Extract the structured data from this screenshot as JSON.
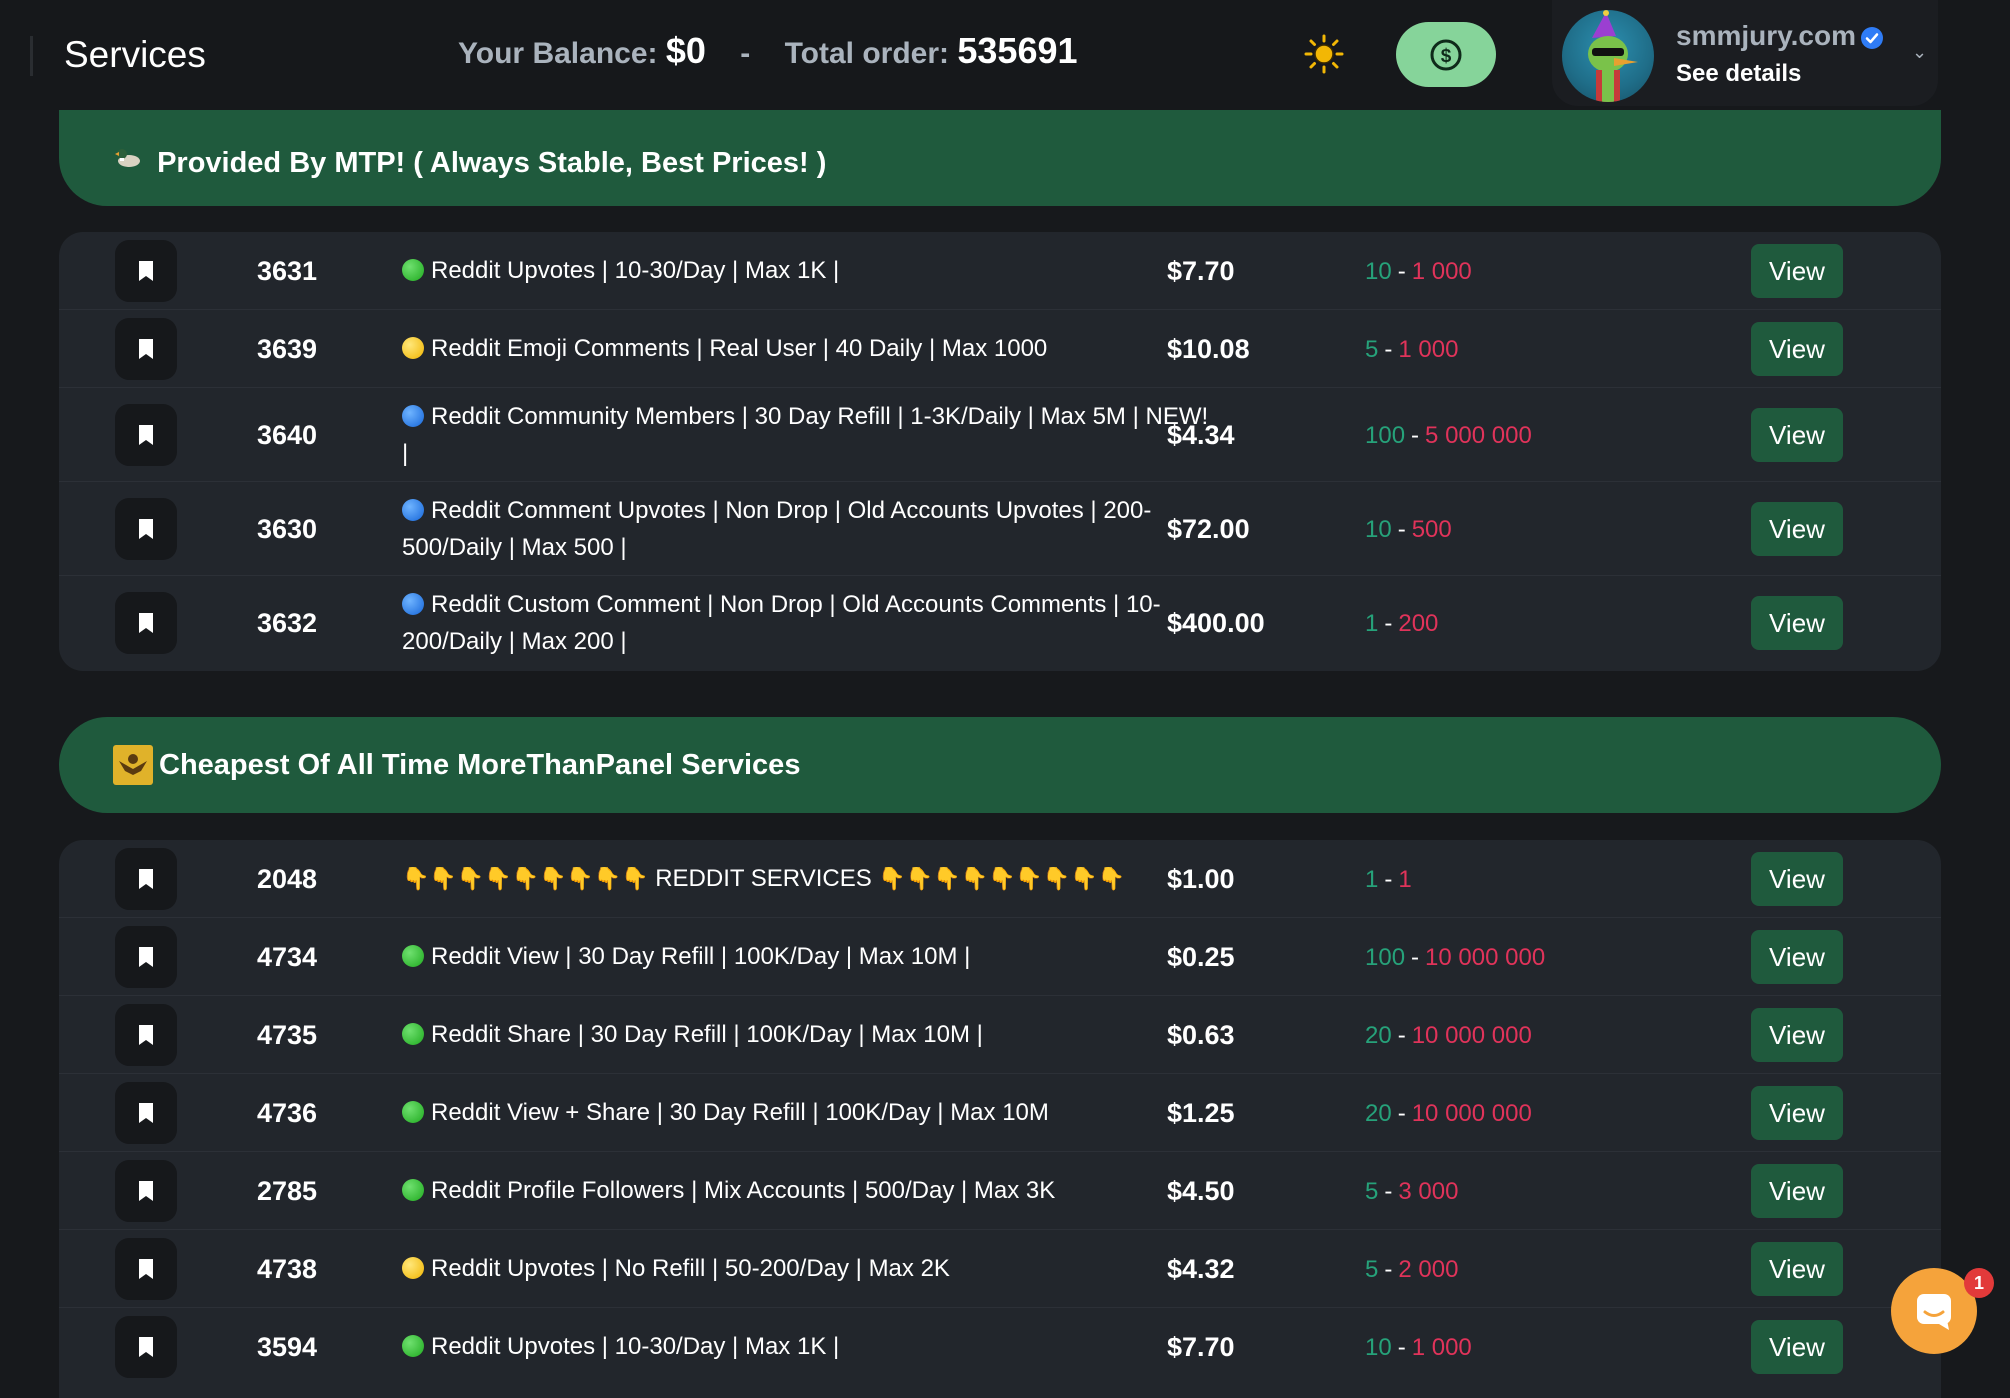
{
  "header": {
    "title": "Services",
    "balance_label": "Your Balance:",
    "balance_value": "$0",
    "separator": "-",
    "total_label": "Total order:",
    "total_value": "535691",
    "theme_icon": "sun-icon",
    "funds_icon": "dollar-circle-icon",
    "profile": {
      "name": "smmjury.com",
      "details": "See details",
      "verified_icon": "verified-badge-icon",
      "chevron": "⌄"
    }
  },
  "categories": [
    {
      "title": "Provided By MTP! ( Always Stable, Best Prices! )",
      "icon": "duck-emoji-icon",
      "services": [
        {
          "id": "3631",
          "dot": "green",
          "name": "Reddit Upvotes | 10-30/Day | Max 1K |",
          "price": "$7.70",
          "min": "10",
          "max": "1 000",
          "action": "View"
        },
        {
          "id": "3639",
          "dot": "yellow",
          "name": "Reddit Emoji Comments | Real User | 40 Daily | Max 1000",
          "price": "$10.08",
          "min": "5",
          "max": "1 000",
          "action": "View"
        },
        {
          "id": "3640",
          "dot": "blue",
          "name": "Reddit Community Members | 30 Day Refill | 1-3K/Daily | Max 5M | NEW! |",
          "price": "$4.34",
          "min": "100",
          "max": "5 000 000",
          "action": "View"
        },
        {
          "id": "3630",
          "dot": "blue",
          "name": "Reddit Comment Upvotes | Non Drop | Old Accounts Upvotes | 200-500/Daily | Max 500 |",
          "price": "$72.00",
          "min": "10",
          "max": "500",
          "action": "View"
        },
        {
          "id": "3632",
          "dot": "blue",
          "name": "Reddit Custom Comment | Non Drop | Old Accounts Comments | 10-200/Daily | Max 200 |",
          "price": "$400.00",
          "min": "1",
          "max": "200",
          "action": "View"
        }
      ]
    },
    {
      "title": "Cheapest Of All Time MoreThanPanel Services",
      "icon": "eagle-emblem-icon",
      "services": [
        {
          "id": "2048",
          "dot": "none",
          "name": "REDDIT SERVICES",
          "fingers": "👇👇👇👇👇👇👇👇👇",
          "price": "$1.00",
          "min": "1",
          "max": "1",
          "action": "View"
        },
        {
          "id": "4734",
          "dot": "green",
          "name": "Reddit View | 30 Day Refill | 100K/Day | Max 10M |",
          "price": "$0.25",
          "min": "100",
          "max": "10 000 000",
          "action": "View"
        },
        {
          "id": "4735",
          "dot": "green",
          "name": "Reddit Share | 30 Day Refill | 100K/Day | Max 10M |",
          "price": "$0.63",
          "min": "20",
          "max": "10 000 000",
          "action": "View"
        },
        {
          "id": "4736",
          "dot": "green",
          "name": "Reddit View + Share | 30 Day Refill | 100K/Day | Max 10M",
          "price": "$1.25",
          "min": "20",
          "max": "10 000 000",
          "action": "View"
        },
        {
          "id": "2785",
          "dot": "green",
          "name": "Reddit Profile Followers | Mix Accounts | 500/Day | Max 3K",
          "price": "$4.50",
          "min": "5",
          "max": "3 000",
          "action": "View"
        },
        {
          "id": "4738",
          "dot": "yellow",
          "name": "Reddit Upvotes | No Refill | 50-200/Day | Max 2K",
          "price": "$4.32",
          "min": "5",
          "max": "2 000",
          "action": "View"
        },
        {
          "id": "3594",
          "dot": "green",
          "name": "Reddit Upvotes | 10-30/Day | Max 1K |",
          "price": "$7.70",
          "min": "10",
          "max": "1 000",
          "action": "View"
        }
      ]
    }
  ],
  "chat": {
    "icon": "chat-bubble-icon",
    "badge": "1"
  },
  "colors": {
    "background": "#17191c",
    "panel": "#22262c",
    "accent_green": "#1f5a3d",
    "fund_button": "#86d49a",
    "min_color": "#26a27a",
    "max_color": "#e0335a",
    "chat": "#f5a33b"
  }
}
